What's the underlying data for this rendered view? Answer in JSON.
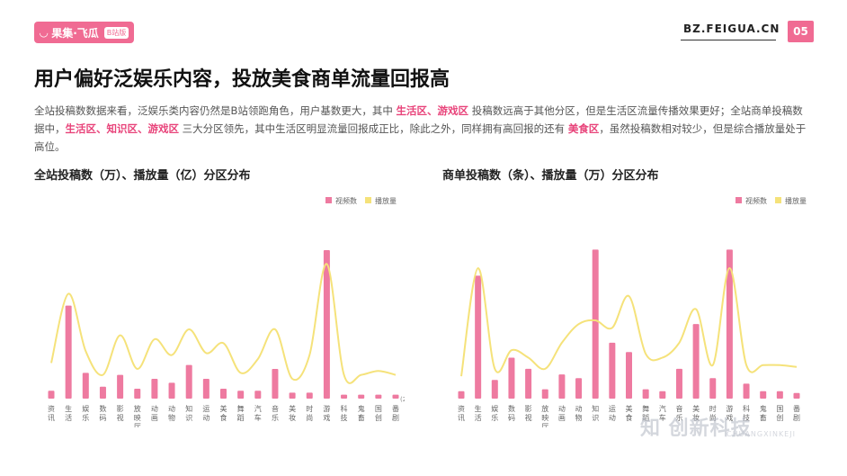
{
  "header": {
    "logo_text": "果集·飞瓜",
    "logo_badge": "B站版",
    "site": "BZ.FEIGUA.CN",
    "page_number": "05"
  },
  "title": "用户偏好泛娱乐内容，投放美食商单流量回报高",
  "summary": [
    {
      "t": "全站投稿数数据来看，泛娱乐类内容仍然是B站领跑角色，用户基数更大，其中 ",
      "hl": false
    },
    {
      "t": "生活区、游戏区",
      "hl": true
    },
    {
      "t": " 投稿数远高于其他分区，但是生活区流量传播效果更好；全站商单投稿数据中，",
      "hl": false
    },
    {
      "t": "生活区、知识区、游戏区",
      "hl": true
    },
    {
      "t": " 三大分区领先，其中生活区明显流量回报成正比，除此之外，同样拥有高回报的还有 ",
      "hl": false
    },
    {
      "t": "美食区",
      "hl": true
    },
    {
      "t": "，虽然投稿数相对较少，但是综合播放量处于高位。",
      "hl": false
    }
  ],
  "colors": {
    "accent": "#f06b93",
    "bar": "#ee7aa0",
    "line": "#f5e27a",
    "highlight": "#e8437a"
  },
  "watermark": {
    "main": "知  创新科技",
    "sub": "CHUANGXINKEJI"
  },
  "chart_data": [
    {
      "type": "bar",
      "title": "全站投稿数（万）、播放量（亿）分区分布",
      "legend_position": "top-right",
      "annotation": "(200)",
      "categories": [
        "资讯",
        "生活",
        "娱乐",
        "数码",
        "影视",
        "放映厅",
        "动画",
        "动物",
        "知识",
        "运动",
        "美食",
        "舞蹈",
        "汽车",
        "音乐",
        "美妆",
        "时尚",
        "游戏",
        "科技",
        "鬼畜",
        "国创",
        "番剧"
      ],
      "series": [
        {
          "name": "视频数",
          "kind": "bar",
          "values": [
            4,
            47,
            13,
            6,
            12,
            5,
            10,
            8,
            17,
            10,
            5,
            4,
            4,
            15,
            3,
            3,
            75,
            2,
            2,
            2,
            2
          ]
        },
        {
          "name": "播放量",
          "kind": "line",
          "values": [
            18,
            53,
            24,
            12,
            32,
            15,
            30,
            22,
            35,
            23,
            28,
            13,
            20,
            35,
            10,
            22,
            68,
            12,
            12,
            14,
            12
          ]
        }
      ],
      "ylim": [
        0,
        80
      ],
      "grid": false
    },
    {
      "type": "bar",
      "title": "商单投稿数（条）、播放量（万）分区分布",
      "legend_position": "top-right",
      "categories": [
        "资讯",
        "生活",
        "娱乐",
        "数码",
        "影视",
        "放映厅",
        "动画",
        "动物",
        "知识",
        "运动",
        "美食",
        "舞蹈",
        "汽车",
        "音乐",
        "美妆",
        "时尚",
        "游戏",
        "科技",
        "鬼畜",
        "国创",
        "番剧"
      ],
      "series": [
        {
          "name": "视频数",
          "kind": "bar",
          "values": [
            4,
            66,
            10,
            22,
            16,
            5,
            13,
            11,
            80,
            30,
            25,
            5,
            4,
            16,
            40,
            11,
            80,
            8,
            4,
            4,
            3
          ]
        },
        {
          "name": "播放量",
          "kind": "line",
          "values": [
            12,
            70,
            16,
            26,
            22,
            16,
            30,
            40,
            42,
            38,
            55,
            24,
            22,
            30,
            48,
            18,
            70,
            18,
            18,
            18,
            17
          ]
        }
      ],
      "ylim": [
        0,
        85
      ],
      "grid": false
    }
  ]
}
